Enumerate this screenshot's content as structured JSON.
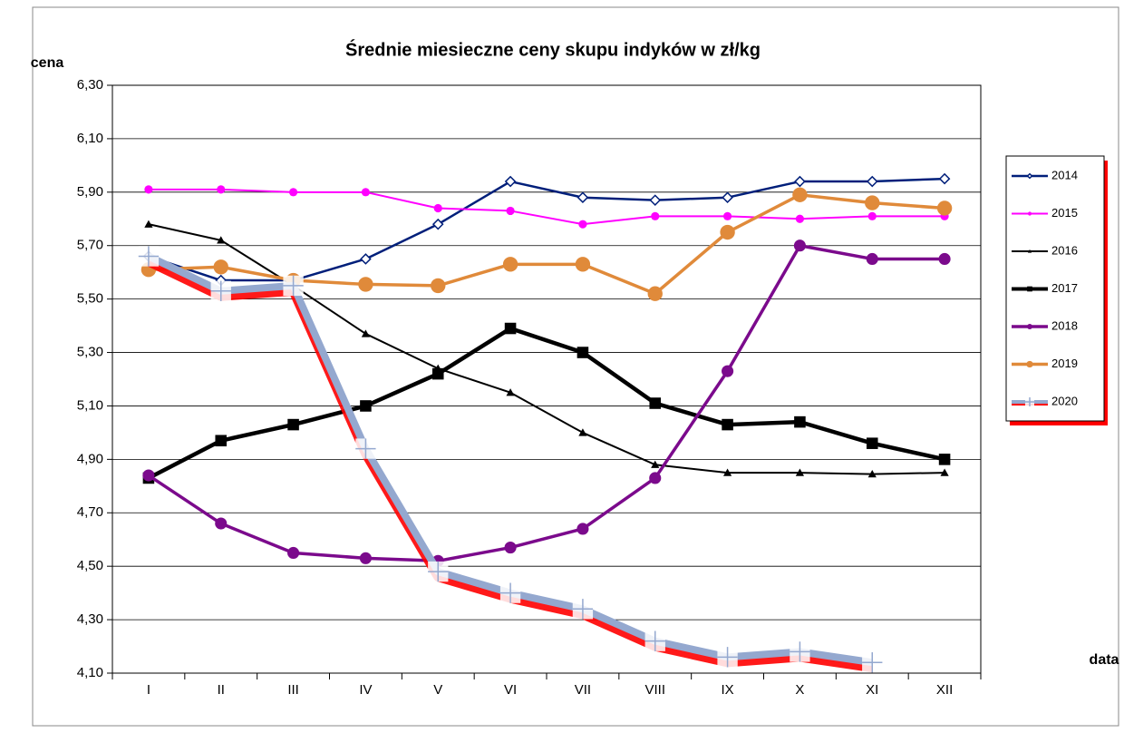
{
  "chart_data": {
    "type": "line",
    "title": "Średnie miesieczne ceny skupu indyków w zł/kg",
    "y_label": "cena",
    "x_label": "data",
    "categories": [
      "I",
      "II",
      "III",
      "IV",
      "V",
      "VI",
      "VII",
      "VIII",
      "IX",
      "X",
      "XI",
      "XII"
    ],
    "ylim": [
      4.1,
      6.3
    ],
    "yticks": [
      {
        "value": 4.1,
        "label": "4,10"
      },
      {
        "value": 4.3,
        "label": "4,30"
      },
      {
        "value": 4.5,
        "label": "4,50"
      },
      {
        "value": 4.7,
        "label": "4,70"
      },
      {
        "value": 4.9,
        "label": "4,90"
      },
      {
        "value": 5.1,
        "label": "5,10"
      },
      {
        "value": 5.3,
        "label": "5,30"
      },
      {
        "value": 5.5,
        "label": "5,50"
      },
      {
        "value": 5.7,
        "label": "5,70"
      },
      {
        "value": 5.9,
        "label": "5,90"
      },
      {
        "value": 6.1,
        "label": "6,10"
      },
      {
        "value": 6.3,
        "label": "6,30"
      }
    ],
    "grid": true,
    "legend": "right",
    "series": [
      {
        "name": "2014",
        "color": "#001f7a",
        "marker": "diamond-open",
        "line_width": 2.5,
        "values": [
          5.66,
          5.57,
          5.57,
          5.65,
          5.78,
          5.94,
          5.88,
          5.87,
          5.88,
          5.94,
          5.94,
          5.95
        ]
      },
      {
        "name": "2015",
        "color": "#ff00ff",
        "marker": "circle",
        "line_width": 2,
        "values": [
          5.91,
          5.91,
          5.9,
          5.9,
          5.84,
          5.83,
          5.78,
          5.81,
          5.81,
          5.8,
          5.81,
          5.81
        ]
      },
      {
        "name": "2016",
        "color": "#000000",
        "marker": "triangle",
        "line_width": 2,
        "values": [
          5.78,
          5.72,
          5.55,
          5.37,
          5.24,
          5.15,
          5.0,
          4.88,
          4.85,
          4.85,
          4.845,
          4.85
        ]
      },
      {
        "name": "2017",
        "color": "#000000",
        "marker": "square",
        "line_width": 4.5,
        "values": [
          4.83,
          4.97,
          5.03,
          5.1,
          5.22,
          5.39,
          5.3,
          5.11,
          5.03,
          5.04,
          4.96,
          4.9
        ]
      },
      {
        "name": "2018",
        "color": "#7b0a8c",
        "marker": "circle",
        "line_width": 3.5,
        "values": [
          4.84,
          4.66,
          4.55,
          4.53,
          4.52,
          4.57,
          4.64,
          4.83,
          5.23,
          5.7,
          5.65,
          5.65
        ]
      },
      {
        "name": "2019",
        "color": "#e08a3a",
        "marker": "circle",
        "line_width": 3.5,
        "values": [
          5.61,
          5.62,
          5.57,
          5.555,
          5.55,
          5.63,
          5.63,
          5.52,
          5.75,
          5.89,
          5.86,
          5.84
        ]
      },
      {
        "name": "2020",
        "color": "#94a8cf",
        "marker": "plus",
        "line_width": 8,
        "shadow": "#ff0000",
        "values": [
          5.66,
          5.53,
          5.55,
          4.94,
          4.48,
          4.4,
          4.34,
          4.22,
          4.16,
          4.18,
          4.14,
          null
        ]
      }
    ]
  }
}
